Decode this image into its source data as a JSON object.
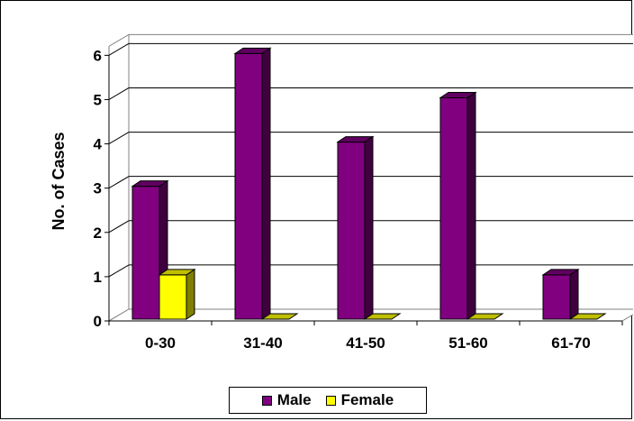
{
  "chart_data": {
    "type": "bar",
    "style": "3d-clustered-column",
    "title": "",
    "xlabel": "",
    "ylabel": "No. of Cases",
    "categories": [
      "0-30",
      "31-40",
      "41-50",
      "51-60",
      "61-70"
    ],
    "ylim": [
      0,
      6
    ],
    "yticks": [
      "0",
      "1",
      "2",
      "3",
      "4",
      "5",
      "6"
    ],
    "grid": true,
    "legend_position": "bottom",
    "series": [
      {
        "name": "Male",
        "values": [
          3,
          6,
          4,
          5,
          1
        ],
        "color": "#800080"
      },
      {
        "name": "Female",
        "values": [
          1,
          0,
          0,
          0,
          0
        ],
        "color": "#FFFF00"
      }
    ]
  }
}
